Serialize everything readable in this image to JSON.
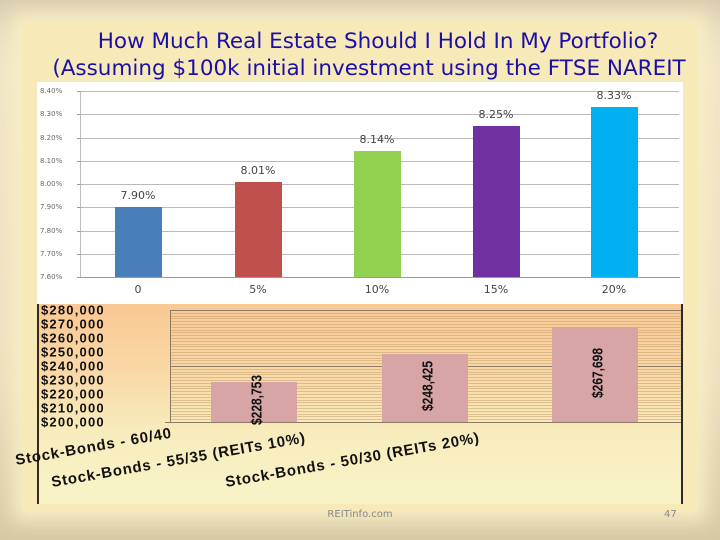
{
  "slide": {
    "title_line1": "How Much Real Estate Should I Hold In My Portfolio?",
    "title_line2": "(Assuming $100k initial investment using the FTSE NAREIT",
    "footer_source": "REITinfo.com",
    "page_number": "47",
    "colors": {
      "title": "#1a0fa8",
      "background": "#f8eab8"
    }
  },
  "chart_data": [
    {
      "type": "bar",
      "title": "",
      "xlabel": "",
      "ylabel": "",
      "categories": [
        "0",
        "5%",
        "10%",
        "15%",
        "20%"
      ],
      "values": [
        7.9,
        8.01,
        8.14,
        8.25,
        8.33
      ],
      "value_labels": [
        "7.90%",
        "8.01%",
        "8.14%",
        "8.25%",
        "8.33%"
      ],
      "bar_colors": [
        "#4a7ebb",
        "#c0504d",
        "#92d050",
        "#7030a0",
        "#00b0f0"
      ],
      "ylim": [
        7.6,
        8.4
      ],
      "yticks": [
        "8.40%",
        "8.30%",
        "8.20%",
        "8.10%",
        "8.00%",
        "7.90%",
        "7.80%",
        "7.70%",
        "7.60%"
      ],
      "grid": true,
      "legend": null
    },
    {
      "type": "bar",
      "title": "",
      "xlabel": "",
      "ylabel": "",
      "categories": [
        "Stock-Bonds - 60/40",
        "Stock-Bonds - 55/35 (REITs 10%)",
        "Stock-Bonds - 50/30 (REITs 20%)"
      ],
      "values": [
        228753,
        248425,
        267698
      ],
      "value_labels": [
        "$228,753",
        "$248,425",
        "$267,698"
      ],
      "bar_colors": [
        "#d7a5a6",
        "#d7a5a6",
        "#d7a5a6"
      ],
      "ylim": [
        200000,
        280000
      ],
      "yticks": [
        "$280,000",
        "$270,000",
        "$260,000",
        "$250,000",
        "$240,000",
        "$230,000",
        "$220,000",
        "$210,000",
        "$200,000"
      ],
      "grid": true,
      "legend": null
    }
  ]
}
